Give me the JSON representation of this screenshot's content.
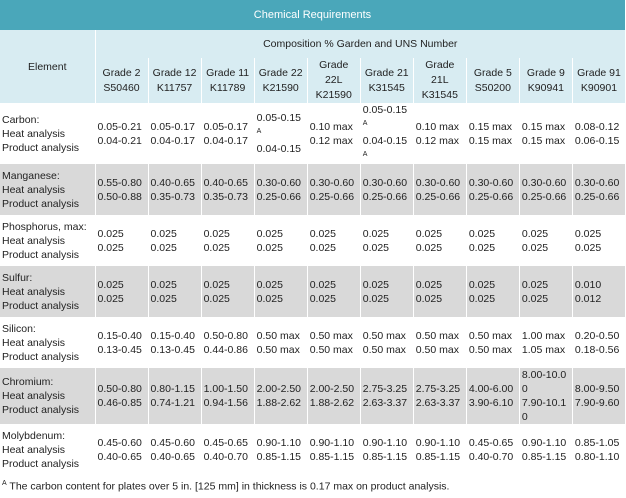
{
  "title": "Chemical Requirements",
  "header": {
    "element": "Element",
    "composition": "Composition % Garden and UNS Number",
    "grades": [
      [
        "Grade 2",
        "S50460"
      ],
      [
        "Grade 12",
        "K11757"
      ],
      [
        "Grade 11",
        "K11789"
      ],
      [
        "Grade 22",
        "K21590"
      ],
      [
        "Grade 22L",
        "K21590"
      ],
      [
        "Grade 21",
        "K31545"
      ],
      [
        "Grade 21L",
        "K31545"
      ],
      [
        "Grade 5",
        "S50200"
      ],
      [
        "Grade 9",
        "K90941"
      ],
      [
        "Grade 91",
        "K90901"
      ]
    ]
  },
  "rows": [
    {
      "element": "Carbon:",
      "labels": [
        "Heat analysis",
        "Product analysis"
      ],
      "cells": [
        [
          "0.05-0.21",
          "0.04-0.21"
        ],
        [
          "0.05-0.17",
          "0.04-0.17"
        ],
        [
          "0.05-0.17",
          "0.04-0.17"
        ],
        [
          {
            "text": "0.05-0.15",
            "sup": "A"
          },
          "0.04-0.15"
        ],
        [
          "0.10 max",
          "0.12 max"
        ],
        [
          {
            "text": "0.05-0.15",
            "sup": "A"
          },
          {
            "text": "0.04-0.15",
            "sup": "A"
          }
        ],
        [
          "0.10 max",
          "0.12 max"
        ],
        [
          "0.15 max",
          "0.15 max"
        ],
        [
          "0.15 max",
          "0.15 max"
        ],
        [
          "0.08-0.12",
          "0.06-0.15"
        ]
      ]
    },
    {
      "element": "Manganese:",
      "labels": [
        "Heat analysis",
        "Product analysis"
      ],
      "cells": [
        [
          "0.55-0.80",
          "0.50-0.88"
        ],
        [
          "0.40-0.65",
          "0.35-0.73"
        ],
        [
          "0.40-0.65",
          "0.35-0.73"
        ],
        [
          "0.30-0.60",
          "0.25-0.66"
        ],
        [
          "0.30-0.60",
          "0.25-0.66"
        ],
        [
          "0.30-0.60",
          "0.25-0.66"
        ],
        [
          "0.30-0.60",
          "0.25-0.66"
        ],
        [
          "0.30-0.60",
          "0.25-0.66"
        ],
        [
          "0.30-0.60",
          "0.25-0.66"
        ],
        [
          "0.30-0.60",
          "0.25-0.66"
        ]
      ]
    },
    {
      "element": "Phosphorus, max:",
      "labels": [
        "Heat analysis",
        "Product analysis"
      ],
      "cells": [
        [
          "0.025",
          "0.025"
        ],
        [
          "0.025",
          "0.025"
        ],
        [
          "0.025",
          "0.025"
        ],
        [
          "0.025",
          "0.025"
        ],
        [
          "0.025",
          "0.025"
        ],
        [
          "0.025",
          "0.025"
        ],
        [
          "0.025",
          "0.025"
        ],
        [
          "0.025",
          "0.025"
        ],
        [
          "0.025",
          "0.025"
        ],
        [
          "0.025",
          "0.025"
        ]
      ]
    },
    {
      "element": "Sulfur:",
      "labels": [
        "Heat analysis",
        "Product analysis"
      ],
      "cells": [
        [
          "0.025",
          "0.025"
        ],
        [
          "0.025",
          "0.025"
        ],
        [
          "0.025",
          "0.025"
        ],
        [
          "0.025",
          "0.025"
        ],
        [
          "0.025",
          "0.025"
        ],
        [
          "0.025",
          "0.025"
        ],
        [
          "0.025",
          "0.025"
        ],
        [
          "0.025",
          "0.025"
        ],
        [
          "0.025",
          "0.025"
        ],
        [
          "0.010",
          "0.012"
        ]
      ]
    },
    {
      "element": "Silicon:",
      "labels": [
        "Heat analysis",
        "Product analysis"
      ],
      "cells": [
        [
          "0.15-0.40",
          "0.13-0.45"
        ],
        [
          "0.15-0.40",
          "0.13-0.45"
        ],
        [
          "0.50-0.80",
          "0.44-0.86"
        ],
        [
          "0.50 max",
          "0.50 max"
        ],
        [
          "0.50 max",
          "0.50 max"
        ],
        [
          "0.50 max",
          "0.50 max"
        ],
        [
          "0.50 max",
          "0.50 max"
        ],
        [
          "0.50 max",
          "0.50 max"
        ],
        [
          "1.00 max",
          "1.05 max"
        ],
        [
          "0.20-0.50",
          "0.18-0.56"
        ]
      ]
    },
    {
      "element": "Chromium:",
      "labels": [
        "Heat analysis",
        "Product analysis"
      ],
      "cells": [
        [
          "0.50-0.80",
          "0.46-0.85"
        ],
        [
          "0.80-1.15",
          "0.74-1.21"
        ],
        [
          "1.00-1.50",
          "0.94-1.56"
        ],
        [
          "2.00-2.50",
          "1.88-2.62"
        ],
        [
          "2.00-2.50",
          "1.88-2.62"
        ],
        [
          "2.75-3.25",
          "2.63-3.37"
        ],
        [
          "2.75-3.25",
          "2.63-3.37"
        ],
        [
          "4.00-6.00",
          "3.90-6.10"
        ],
        [
          "8.00-10.00",
          "7.90-10.10"
        ],
        [
          "8.00-9.50",
          "7.90-9.60"
        ]
      ]
    },
    {
      "element": "Molybdenum:",
      "labels": [
        "Heat analysis",
        "Product analysis"
      ],
      "cells": [
        [
          "0.45-0.60",
          "0.40-0.65"
        ],
        [
          "0.45-0.60",
          "0.40-0.65"
        ],
        [
          "0.45-0.65",
          "0.40-0.70"
        ],
        [
          "0.90-1.10",
          "0.85-1.15"
        ],
        [
          "0.90-1.10",
          "0.85-1.15"
        ],
        [
          "0.90-1.10",
          "0.85-1.15"
        ],
        [
          "0.90-1.10",
          "0.85-1.15"
        ],
        [
          "0.45-0.65",
          "0.40-0.70"
        ],
        [
          "0.90-1.10",
          "0.85-1.15"
        ],
        [
          "0.85-1.05",
          "0.80-1.10"
        ]
      ]
    }
  ],
  "footnote": {
    "mark": "A",
    "text": "The carbon content for plates over 5 in. [125 mm] in thickness is 0.17 max on product analysis."
  }
}
